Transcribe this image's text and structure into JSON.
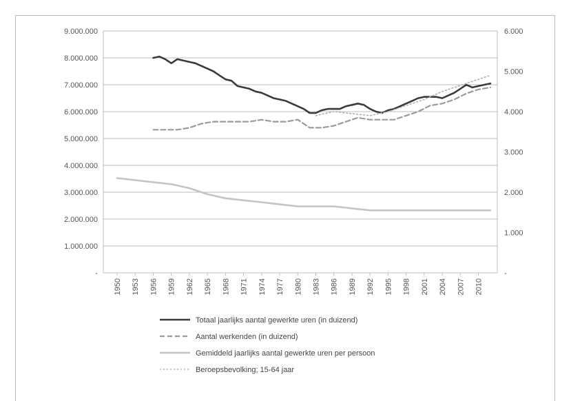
{
  "chart_data": {
    "type": "line",
    "grid": true,
    "legend_placement": "bottom",
    "left_axis": {
      "ylim": [
        0,
        9000000
      ],
      "ticks": [
        "-",
        "1.000.000",
        "2.000.000",
        "3.000.000",
        "4.000.000",
        "5.000.000",
        "6.000.000",
        "7.000.000",
        "8.000.000",
        "9.000.000"
      ]
    },
    "right_axis": {
      "ylim": [
        0,
        6000
      ],
      "ticks": [
        "-",
        "1.000",
        "2.000",
        "3.000",
        "4.000",
        "5.000",
        "6.000"
      ]
    },
    "xlim": [
      1950,
      2012
    ],
    "x_tick_labels": [
      "1950",
      "1953",
      "1956",
      "1959",
      "1962",
      "1965",
      "1968",
      "1971",
      "1974",
      "1977",
      "1980",
      "1983",
      "1986",
      "1989",
      "1992",
      "1995",
      "1998",
      "2001",
      "2004",
      "2007",
      "2010"
    ],
    "series": [
      {
        "name": "Totaal jaarlijks aantal gewerkte uren (in duizend)",
        "axis": "left",
        "color": "#3a3a3a",
        "style": "solid",
        "x": [
          1956,
          1957,
          1958,
          1959,
          1960,
          1961,
          1962,
          1963,
          1964,
          1965,
          1966,
          1967,
          1968,
          1969,
          1970,
          1971,
          1972,
          1973,
          1974,
          1975,
          1976,
          1977,
          1978,
          1979,
          1980,
          1981,
          1982,
          1983,
          1984,
          1985,
          1986,
          1987,
          1988,
          1989,
          1990,
          1991,
          1992,
          1993,
          1994,
          1995,
          1996,
          1997,
          1998,
          1999,
          2000,
          2001,
          2002,
          2003,
          2004,
          2005,
          2006,
          2007,
          2008,
          2009,
          2010,
          2011,
          2012
        ],
        "y": [
          8000000,
          8050000,
          7950000,
          7800000,
          7950000,
          7900000,
          7850000,
          7800000,
          7700000,
          7600000,
          7500000,
          7350000,
          7200000,
          7150000,
          6950000,
          6900000,
          6850000,
          6750000,
          6700000,
          6600000,
          6500000,
          6450000,
          6400000,
          6300000,
          6200000,
          6100000,
          5950000,
          5950000,
          6050000,
          6100000,
          6100000,
          6100000,
          6200000,
          6250000,
          6300000,
          6250000,
          6100000,
          6000000,
          5950000,
          6050000,
          6100000,
          6200000,
          6300000,
          6400000,
          6500000,
          6550000,
          6550000,
          6550000,
          6500000,
          6600000,
          6700000,
          6850000,
          7000000,
          6900000,
          6950000,
          7000000,
          7050000
        ]
      },
      {
        "name": "Aantal werkenden (in duizend)",
        "axis": "right",
        "color": "#9a9a9a",
        "style": "dashed",
        "x": [
          1956,
          1958,
          1960,
          1962,
          1964,
          1966,
          1968,
          1970,
          1972,
          1974,
          1976,
          1978,
          1980,
          1982,
          1984,
          1986,
          1988,
          1990,
          1992,
          1994,
          1996,
          1998,
          2000,
          2002,
          2004,
          2006,
          2008,
          2010,
          2012
        ],
        "y": [
          3550,
          3550,
          3550,
          3600,
          3700,
          3750,
          3750,
          3750,
          3750,
          3800,
          3750,
          3750,
          3800,
          3600,
          3600,
          3650,
          3750,
          3850,
          3800,
          3800,
          3800,
          3900,
          4000,
          4150,
          4200,
          4300,
          4450,
          4550,
          4600
        ]
      },
      {
        "name": "Gemiddeld jaarlijks aantal gewerkte uren per persoon",
        "axis": "right",
        "color": "#c4c4c4",
        "style": "solid",
        "x": [
          1950,
          1953,
          1956,
          1959,
          1962,
          1965,
          1968,
          1971,
          1974,
          1977,
          1980,
          1983,
          1986,
          1989,
          1992,
          1995,
          1998,
          2001,
          2004,
          2007,
          2010,
          2012
        ],
        "y": [
          2350,
          2300,
          2250,
          2200,
          2100,
          1950,
          1850,
          1800,
          1750,
          1700,
          1650,
          1650,
          1650,
          1600,
          1550,
          1550,
          1550,
          1550,
          1550,
          1550,
          1550,
          1550
        ]
      },
      {
        "name": "Beroepsbevolking; 15-64 jaar",
        "axis": "right",
        "color": "#b0b0b0",
        "style": "dotted",
        "x": [
          1983,
          1986,
          1989,
          1992,
          1995,
          1998,
          2001,
          2004,
          2007,
          2010,
          2012
        ],
        "y": [
          3900,
          4000,
          3950,
          3900,
          4000,
          4150,
          4300,
          4500,
          4650,
          4800,
          4900
        ]
      }
    ]
  }
}
